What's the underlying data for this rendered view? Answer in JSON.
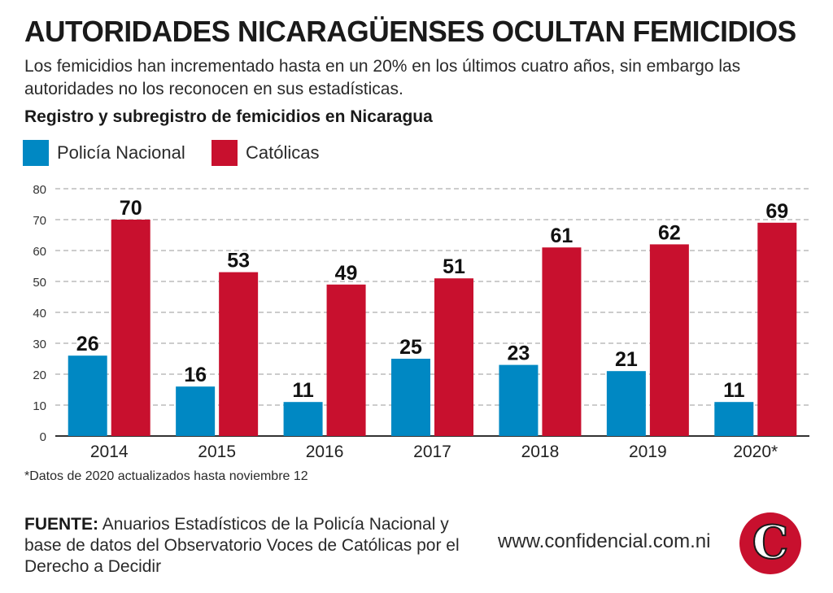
{
  "header": {
    "title": "AUTORIDADES NICARAGÜENSES OCULTAN FEMICIDIOS",
    "subtitle": "Los femicidios han incrementado hasta en un 20% en los últimos cuatro años, sin embargo las autoridades no los reconocen en sus estadísticas."
  },
  "legend": {
    "police_label": "Policía Nacional",
    "catholic_label": "Católicas"
  },
  "colors": {
    "police": "#0088c3",
    "catholic": "#c8102e",
    "grid": "#9a9a9a",
    "axis": "#333333"
  },
  "chart_data": {
    "type": "bar",
    "title": "Registro y subregistro de femicidios en Nicaragua",
    "xlabel": "",
    "ylabel": "",
    "categories": [
      "2014",
      "2015",
      "2016",
      "2017",
      "2018",
      "2019",
      "2020*"
    ],
    "series": [
      {
        "name": "Policía Nacional",
        "values": [
          26,
          16,
          11,
          25,
          23,
          21,
          11
        ]
      },
      {
        "name": "Católicas",
        "values": [
          70,
          53,
          49,
          51,
          61,
          62,
          69
        ]
      }
    ],
    "ylim": [
      0,
      80
    ],
    "yticks": [
      0,
      10,
      20,
      30,
      40,
      50,
      60,
      70,
      80
    ],
    "grid": true,
    "grid_style": "dashed",
    "legend_position": "top-left"
  },
  "footer": {
    "note": "*Datos de 2020 actualizados hasta noviembre 12",
    "source_label": "FUENTE:",
    "source_text": "Anuarios Estadísticos de la Policía Nacional y base de datos del Observatorio Voces de Católicas por el Derecho a Decidir",
    "website": "www.confidencial.com.ni",
    "logo_letter": "C"
  }
}
